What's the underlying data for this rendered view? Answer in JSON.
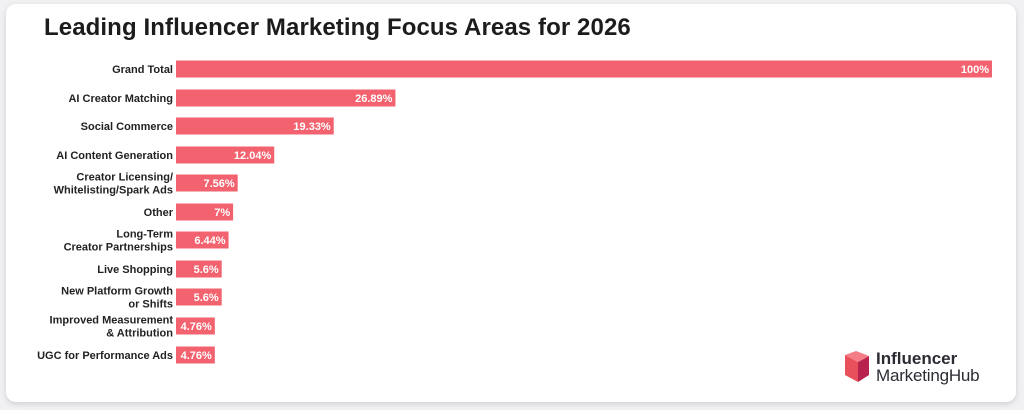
{
  "colors": {
    "bar": "#f2636f",
    "label_text": "#222222",
    "value_text": "#ffffff"
  },
  "chart_data": {
    "type": "bar",
    "orientation": "horizontal",
    "title": "Leading Influencer Marketing Focus Areas for 2026",
    "categories": [
      [
        "Grand Total"
      ],
      [
        "AI Creator Matching"
      ],
      [
        "Social Commerce"
      ],
      [
        "AI Content Generation"
      ],
      [
        "Creator Licensing/",
        "Whitelisting/Spark Ads"
      ],
      [
        "Other"
      ],
      [
        "Long-Term",
        "Creator Partnerships"
      ],
      [
        "Live Shopping"
      ],
      [
        "New Platform Growth",
        "or Shifts"
      ],
      [
        "Improved Measurement",
        "& Attribution"
      ],
      [
        "UGC for Performance Ads"
      ]
    ],
    "values": [
      100,
      26.89,
      19.33,
      12.04,
      7.56,
      7,
      6.44,
      5.6,
      5.6,
      4.76,
      4.76
    ],
    "value_labels": [
      "100%",
      "26.89%",
      "19.33%",
      "12.04%",
      "7.56%",
      "7%",
      "6.44%",
      "5.6%",
      "5.6%",
      "4.76%",
      "4.76%"
    ],
    "xlim": [
      0,
      100
    ],
    "grid": false,
    "legend": "none"
  },
  "logo": {
    "line1": "Influencer",
    "line2": "MarketingHub"
  }
}
